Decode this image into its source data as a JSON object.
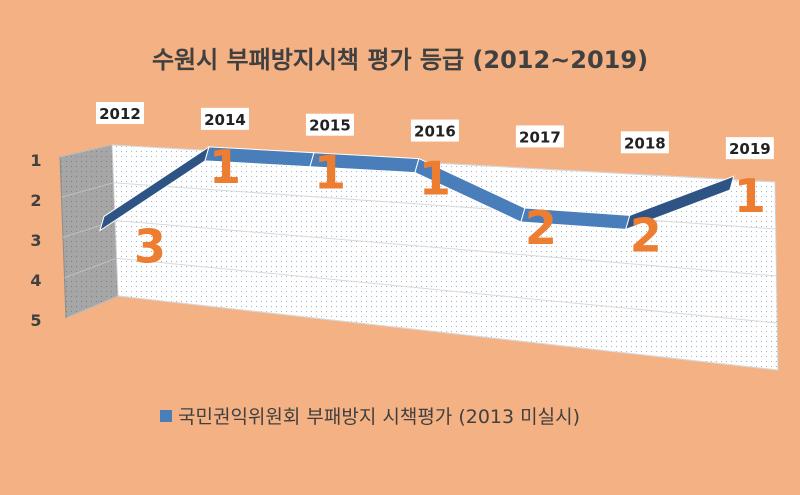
{
  "chart_data": {
    "type": "area",
    "title": "수원시 부패방지시책 평가 등급 (2012~2019)",
    "categories": [
      "2012",
      "2014",
      "2015",
      "2016",
      "2017",
      "2018",
      "2019"
    ],
    "series": [
      {
        "name": "국민권익위원회 부패방지 시책평가 (2013 미실시)",
        "values": [
          3,
          1,
          1,
          1,
          2,
          2,
          1
        ]
      }
    ],
    "data_labels": [
      "3",
      "1",
      "1",
      "1",
      "2",
      "2",
      "1"
    ],
    "y_ticks": [
      "1",
      "2",
      "3",
      "4",
      "5"
    ],
    "ylim": [
      1,
      5
    ],
    "y_reversed": true,
    "colors": {
      "series": "#4A7EBB",
      "series_dark": "#2E5485",
      "data_label": "#ED7D31",
      "background": "#F4B183",
      "wall": "#FFFFFF",
      "side_wall": "#A6A6A6"
    }
  }
}
